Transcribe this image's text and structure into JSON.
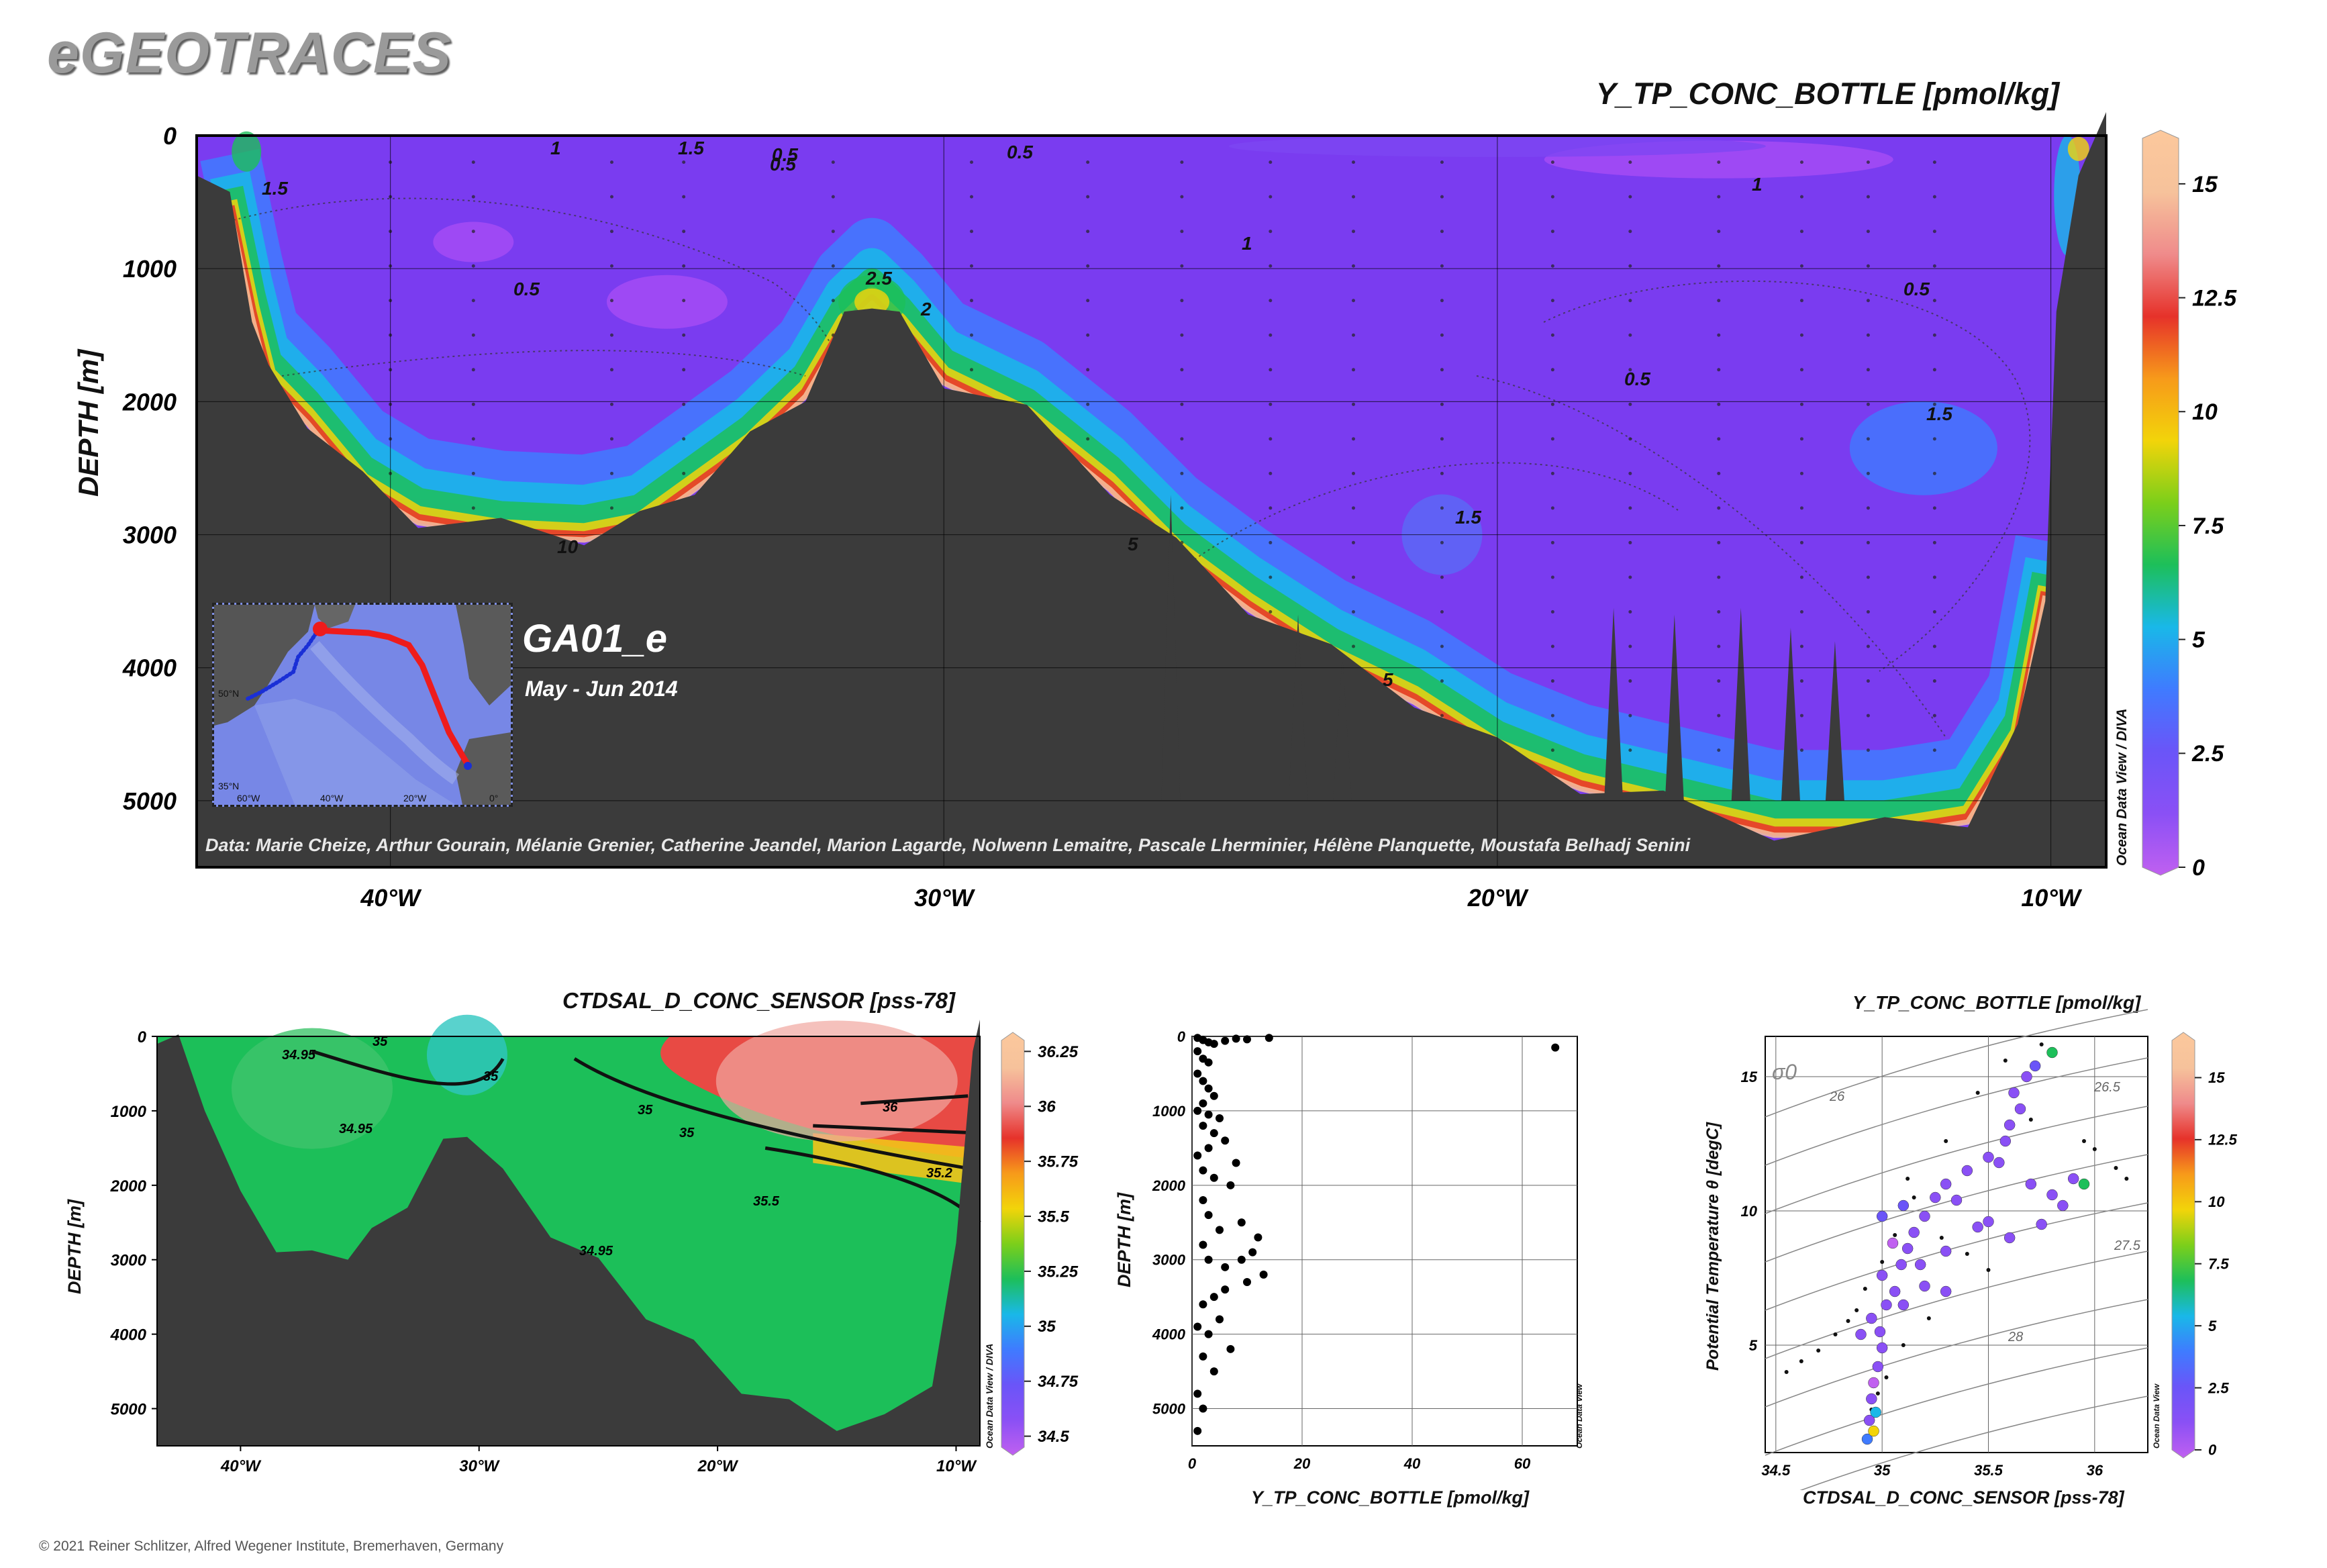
{
  "header": {
    "brand": "eGEOTRACES",
    "copyright": "© 2021 Reiner Schlitzer, Alfred Wegener Institute, Bremerhaven, Germany"
  },
  "colors": {
    "terrain": "#3b3b3b",
    "background_water": "#7a3cf0",
    "colormap": [
      "#c060f0",
      "#8a50f5",
      "#6a55f8",
      "#3f7bff",
      "#19b8e8",
      "#1dbf5a",
      "#7ccf1a",
      "#f2d40a",
      "#f79a1a",
      "#e6322a",
      "#ef8b8b",
      "#f6c29b",
      "#fcc89c"
    ]
  },
  "section": {
    "title": "Y_TP_CONC_BOTTLE [pmol/kg]",
    "ylabel": "DEPTH [m]",
    "odv_mark": "Ocean Data View / DIVA",
    "data_credit": "Data: Marie Cheize, Arthur Gourain, Mélanie Grenier, Catherine Jeandel, Marion Lagarde, Nolwenn Lemaitre, Pascale Lherminier, Hélène Planquette, Moustafa Belhadj Senini",
    "cruise": "GA01_e",
    "period": "May - Jun 2014",
    "inset_labels": [
      "60°W",
      "40°W",
      "20°W",
      "0°",
      "50°N",
      "35°N"
    ]
  },
  "chart_data": [
    {
      "type": "heatmap",
      "title": "Y_TP_CONC_BOTTLE [pmol/kg]",
      "ylabel": "DEPTH [m]",
      "x_ticks": [
        "40°W",
        "30°W",
        "20°W",
        "10°W"
      ],
      "x_tick_values": [
        -40,
        -30,
        -20,
        -10
      ],
      "xlim": [
        -43.5,
        -9
      ],
      "y_ticks": [
        0,
        1000,
        2000,
        3000,
        4000,
        5000
      ],
      "ylim": [
        5500,
        0
      ],
      "colorbar": {
        "ticks": [
          0,
          2.5,
          5,
          7.5,
          10,
          12.5,
          15
        ],
        "range": [
          0,
          16
        ]
      },
      "contour_labels": [
        "0.5",
        "1",
        "1.5",
        "2",
        "2.5",
        "5",
        "10"
      ],
      "grid": true
    },
    {
      "type": "heatmap",
      "title": "CTDSAL_D_CONC_SENSOR [pss-78]",
      "ylabel": "DEPTH [m]",
      "x_ticks": [
        "40°W",
        "30°W",
        "20°W",
        "10°W"
      ],
      "xlim": [
        -43.5,
        -9
      ],
      "y_ticks": [
        0,
        1000,
        2000,
        3000,
        4000,
        5000
      ],
      "ylim": [
        5500,
        0
      ],
      "colorbar": {
        "ticks": [
          34.5,
          34.75,
          35,
          35.25,
          35.5,
          35.75,
          36,
          36.25
        ],
        "range": [
          34.45,
          36.3
        ]
      },
      "contour_labels": [
        "35",
        "34.95",
        "35.5",
        "35.2",
        "36"
      ],
      "odv_mark": "Ocean Data View / DIVA"
    },
    {
      "type": "scatter",
      "xlabel": "Y_TP_CONC_BOTTLE [pmol/kg]",
      "ylabel": "DEPTH [m]",
      "xlim": [
        0,
        70
      ],
      "ylim": [
        5500,
        0
      ],
      "x_ticks": [
        0,
        20,
        40,
        60
      ],
      "y_ticks": [
        0,
        1000,
        2000,
        3000,
        4000,
        5000
      ],
      "odv_mark": "Ocean Data View",
      "points": [
        [
          1,
          20
        ],
        [
          2,
          50
        ],
        [
          3,
          80
        ],
        [
          4,
          100
        ],
        [
          6,
          60
        ],
        [
          8,
          30
        ],
        [
          10,
          40
        ],
        [
          14,
          20
        ],
        [
          1,
          200
        ],
        [
          2,
          300
        ],
        [
          3,
          350
        ],
        [
          1,
          500
        ],
        [
          2,
          600
        ],
        [
          3,
          700
        ],
        [
          4,
          800
        ],
        [
          2,
          900
        ],
        [
          1,
          1000
        ],
        [
          3,
          1050
        ],
        [
          5,
          1100
        ],
        [
          2,
          1200
        ],
        [
          4,
          1300
        ],
        [
          6,
          1400
        ],
        [
          3,
          1500
        ],
        [
          1,
          1600
        ],
        [
          2,
          1800
        ],
        [
          4,
          1900
        ],
        [
          7,
          2000
        ],
        [
          2,
          2200
        ],
        [
          3,
          2400
        ],
        [
          8,
          1700
        ],
        [
          5,
          2600
        ],
        [
          2,
          2800
        ],
        [
          3,
          3000
        ],
        [
          6,
          3100
        ],
        [
          9,
          3000
        ],
        [
          11,
          2900
        ],
        [
          13,
          3200
        ],
        [
          10,
          3300
        ],
        [
          6,
          3400
        ],
        [
          4,
          3500
        ],
        [
          2,
          3600
        ],
        [
          1,
          3900
        ],
        [
          3,
          4000
        ],
        [
          2,
          4300
        ],
        [
          4,
          4500
        ],
        [
          1,
          4800
        ],
        [
          2,
          5000
        ],
        [
          1,
          5300
        ],
        [
          5,
          3800
        ],
        [
          12,
          2700
        ],
        [
          9,
          2500
        ],
        [
          7,
          4200
        ],
        [
          66,
          150
        ]
      ]
    },
    {
      "type": "scatter",
      "title": "Y_TP_CONC_BOTTLE [pmol/kg]",
      "xlabel": "CTDSAL_D_CONC_SENSOR [pss-78]",
      "ylabel": "Potential Temperature θ [degC]",
      "xlim": [
        34.45,
        36.25
      ],
      "ylim": [
        1,
        16.5
      ],
      "x_ticks": [
        34.5,
        35,
        35.5,
        36
      ],
      "y_ticks": [
        5,
        10,
        15
      ],
      "isopycnal_labels": [
        "26.5",
        "26",
        "27.5",
        "28"
      ],
      "sigma_label": "σ0",
      "colorbar": {
        "ticks": [
          0,
          2.5,
          5,
          7.5,
          10,
          12.5,
          15
        ],
        "range": [
          0,
          16.5
        ]
      },
      "odv_mark": "Ocean Data View",
      "points": [
        [
          34.93,
          1.5,
          4
        ],
        [
          34.94,
          2.2,
          1
        ],
        [
          34.95,
          3,
          1
        ],
        [
          34.96,
          3.6,
          0.5
        ],
        [
          34.98,
          4.2,
          1
        ],
        [
          35.0,
          4.9,
          1
        ],
        [
          34.9,
          5.4,
          0.8
        ],
        [
          34.95,
          6.0,
          1
        ],
        [
          35.02,
          6.5,
          1
        ],
        [
          35.06,
          7.0,
          0.7
        ],
        [
          35.0,
          7.6,
          1
        ],
        [
          35.09,
          8.0,
          1
        ],
        [
          35.12,
          8.6,
          0.8
        ],
        [
          35.15,
          9.2,
          1
        ],
        [
          35.2,
          9.8,
          1
        ],
        [
          35.1,
          10.2,
          3
        ],
        [
          35.25,
          10.5,
          1
        ],
        [
          35.3,
          11.0,
          0.8
        ],
        [
          35.4,
          11.5,
          1
        ],
        [
          35.5,
          12.0,
          1
        ],
        [
          35.58,
          12.6,
          1
        ],
        [
          35.6,
          13.2,
          0.8
        ],
        [
          35.65,
          13.8,
          1
        ],
        [
          35.62,
          14.4,
          1
        ],
        [
          35.68,
          15.0,
          1
        ],
        [
          35.72,
          15.4,
          3
        ],
        [
          35.8,
          15.9,
          7
        ],
        [
          35.55,
          11.8,
          1
        ],
        [
          35.7,
          11.0,
          1
        ],
        [
          35.8,
          10.6,
          0.9
        ],
        [
          35.9,
          11.2,
          1
        ],
        [
          35.95,
          11.0,
          7
        ],
        [
          35.5,
          9.6,
          1
        ],
        [
          35.6,
          9.0,
          1
        ],
        [
          35.3,
          8.5,
          1
        ],
        [
          35.2,
          7.2,
          1
        ],
        [
          35.1,
          6.5,
          1
        ],
        [
          35.3,
          7.0,
          0.8
        ],
        [
          35.45,
          9.4,
          1
        ],
        [
          35.75,
          9.5,
          1
        ],
        [
          35.85,
          10.2,
          1
        ],
        [
          35.35,
          10.4,
          1
        ],
        [
          35.0,
          9.8,
          3
        ],
        [
          35.05,
          8.8,
          0.5
        ],
        [
          34.97,
          2.5,
          6
        ],
        [
          34.96,
          1.8,
          9
        ],
        [
          34.99,
          5.5,
          2
        ],
        [
          35.18,
          8.0,
          1.5
        ]
      ],
      "small_points": [
        [
          34.55,
          4.0
        ],
        [
          34.62,
          4.4
        ],
        [
          34.7,
          4.8
        ],
        [
          34.78,
          5.4
        ],
        [
          34.84,
          5.9
        ],
        [
          34.88,
          6.3
        ],
        [
          34.92,
          7.1
        ],
        [
          35.0,
          8.1
        ],
        [
          35.06,
          9.1
        ],
        [
          35.15,
          10.5
        ],
        [
          35.3,
          12.6
        ],
        [
          35.45,
          14.4
        ],
        [
          35.58,
          15.6
        ],
        [
          35.75,
          16.2
        ],
        [
          36.0,
          12.3
        ],
        [
          36.1,
          11.6
        ],
        [
          36.15,
          11.2
        ],
        [
          35.95,
          12.6
        ],
        [
          35.7,
          13.4
        ],
        [
          35.4,
          8.4
        ],
        [
          35.5,
          7.8
        ],
        [
          34.98,
          3.2
        ],
        [
          34.95,
          2.6
        ],
        [
          35.02,
          3.8
        ],
        [
          35.1,
          5.0
        ],
        [
          35.22,
          6.0
        ],
        [
          35.12,
          11.2
        ],
        [
          35.28,
          9.0
        ]
      ]
    }
  ]
}
